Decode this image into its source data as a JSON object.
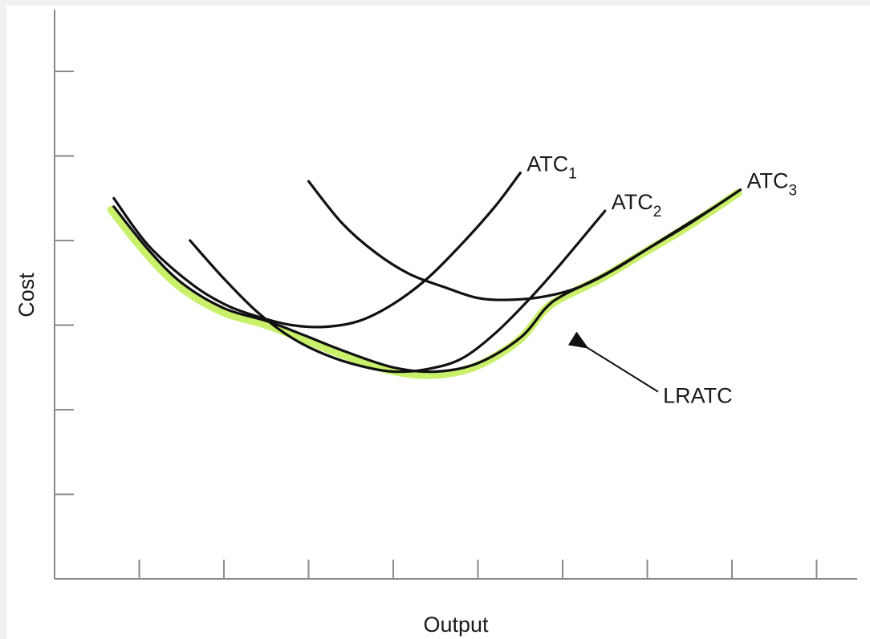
{
  "chart_data": {
    "type": "line",
    "xlabel": "Output",
    "ylabel": "Cost",
    "grid": false,
    "x_ticks": 9,
    "y_ticks": 6,
    "series": [
      {
        "name": "LRATC",
        "label": "LRATC",
        "role": "envelope",
        "color": "#c9f06a",
        "points": [
          [
            0.7,
            4.4
          ],
          [
            1.1,
            3.9
          ],
          [
            1.5,
            3.5
          ],
          [
            2.0,
            3.2
          ],
          [
            2.5,
            3.05
          ],
          [
            2.9,
            2.9
          ],
          [
            3.4,
            2.7
          ],
          [
            4.0,
            2.5
          ],
          [
            4.5,
            2.45
          ],
          [
            5.0,
            2.55
          ],
          [
            5.5,
            2.85
          ],
          [
            5.8,
            3.2
          ],
          [
            6.0,
            3.35
          ],
          [
            6.5,
            3.6
          ],
          [
            7.0,
            3.9
          ],
          [
            7.5,
            4.2
          ],
          [
            8.1,
            4.6
          ]
        ]
      },
      {
        "name": "ATC1",
        "label_main": "ATC",
        "label_sub": "1",
        "role": "short-run",
        "color": "#111111",
        "points": [
          [
            0.7,
            4.5
          ],
          [
            1.1,
            3.95
          ],
          [
            1.6,
            3.5
          ],
          [
            2.0,
            3.25
          ],
          [
            2.4,
            3.1
          ],
          [
            2.8,
            3.0
          ],
          [
            3.2,
            2.98
          ],
          [
            3.6,
            3.05
          ],
          [
            4.0,
            3.25
          ],
          [
            4.4,
            3.55
          ],
          [
            4.8,
            3.95
          ],
          [
            5.2,
            4.4
          ],
          [
            5.5,
            4.8
          ]
        ]
      },
      {
        "name": "ATC2",
        "label_main": "ATC",
        "label_sub": "2",
        "role": "short-run",
        "color": "#111111",
        "points": [
          [
            1.6,
            4.0
          ],
          [
            2.0,
            3.55
          ],
          [
            2.4,
            3.15
          ],
          [
            2.8,
            2.85
          ],
          [
            3.2,
            2.65
          ],
          [
            3.6,
            2.52
          ],
          [
            4.0,
            2.45
          ],
          [
            4.4,
            2.48
          ],
          [
            4.8,
            2.6
          ],
          [
            5.2,
            2.9
          ],
          [
            5.6,
            3.3
          ],
          [
            6.0,
            3.75
          ],
          [
            6.5,
            4.35
          ]
        ]
      },
      {
        "name": "ATC3",
        "label_main": "ATC",
        "label_sub": "3",
        "role": "short-run",
        "color": "#111111",
        "points": [
          [
            3.0,
            4.7
          ],
          [
            3.4,
            4.2
          ],
          [
            3.8,
            3.85
          ],
          [
            4.2,
            3.6
          ],
          [
            4.6,
            3.45
          ],
          [
            5.0,
            3.32
          ],
          [
            5.4,
            3.3
          ],
          [
            5.8,
            3.34
          ],
          [
            6.2,
            3.45
          ],
          [
            6.6,
            3.65
          ],
          [
            7.0,
            3.9
          ],
          [
            7.4,
            4.15
          ],
          [
            7.8,
            4.4
          ],
          [
            8.1,
            4.6
          ]
        ]
      }
    ],
    "annotations": [
      {
        "text": "LRATC",
        "points_to": [
          6.2,
          2.8
        ]
      }
    ]
  }
}
